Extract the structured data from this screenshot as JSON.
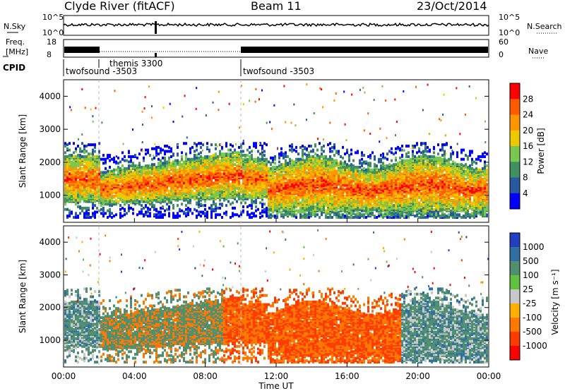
{
  "header": {
    "station": "Clyde River (fitACF)",
    "beam": "Beam 11",
    "date": "23/Oct/2014"
  },
  "params": {
    "nsky_label": "N.Sky",
    "nsearch_label": "N.Search",
    "freq_label_1": "Freq.",
    "freq_label_2": "[MHz]",
    "nave_label": "Nave",
    "cpid_label": "CPID",
    "left_top_tick": "10^5",
    "left_bottom_tick": "10^0",
    "right_top_tick": "10^5",
    "right_bottom_tick": "10^0",
    "freq_ticks": [
      "18",
      "8"
    ],
    "nave_ticks": [
      "60",
      "0"
    ]
  },
  "cpid_segments": [
    {
      "label": "twofsound -3503"
    },
    {
      "label": "themis 3300"
    },
    {
      "label": "twofsound -3503"
    }
  ],
  "power_colorbar": {
    "label": "Power [dB]",
    "ticks": [
      "28",
      "24",
      "20",
      "16",
      "12",
      "8",
      "4"
    ],
    "colors": [
      "#ff0000",
      "#ff5a00",
      "#ff9600",
      "#f0c800",
      "#78c850",
      "#409060",
      "#285aa0",
      "#0000ff"
    ]
  },
  "velocity_colorbar": {
    "label": "Velocity [m s⁻¹]",
    "ticks": [
      "1000",
      "500",
      "100",
      "25",
      "-25",
      "-100",
      "-500",
      "-1000"
    ],
    "colors": [
      "#2040c0",
      "#3070a0",
      "#509070",
      "#60c040",
      "#c8c8c8",
      "#ffb000",
      "#ff7800",
      "#ff3c00",
      "#ff0000"
    ]
  },
  "chart_data": [
    {
      "type": "heatmap",
      "name": "power",
      "ylabel": "Slant Range [km]",
      "yticks": [
        "4000",
        "3000",
        "2000",
        "1000"
      ],
      "ylim": [
        180,
        4500
      ],
      "xlim_hours": [
        0,
        24
      ],
      "z_range_db": [
        0,
        30
      ]
    },
    {
      "type": "heatmap",
      "name": "velocity",
      "ylabel": "Slant Range [km]",
      "yticks": [
        "4000",
        "3000",
        "2000",
        "1000"
      ],
      "ylim": [
        180,
        4500
      ],
      "xlim_hours": [
        0,
        24
      ],
      "z_range_ms": [
        -1000,
        1000
      ]
    }
  ],
  "xaxis": {
    "ticks": [
      "00:00",
      "04:00",
      "08:00",
      "12:00",
      "16:00",
      "20:00",
      "00:00"
    ],
    "label": "Time UT"
  }
}
